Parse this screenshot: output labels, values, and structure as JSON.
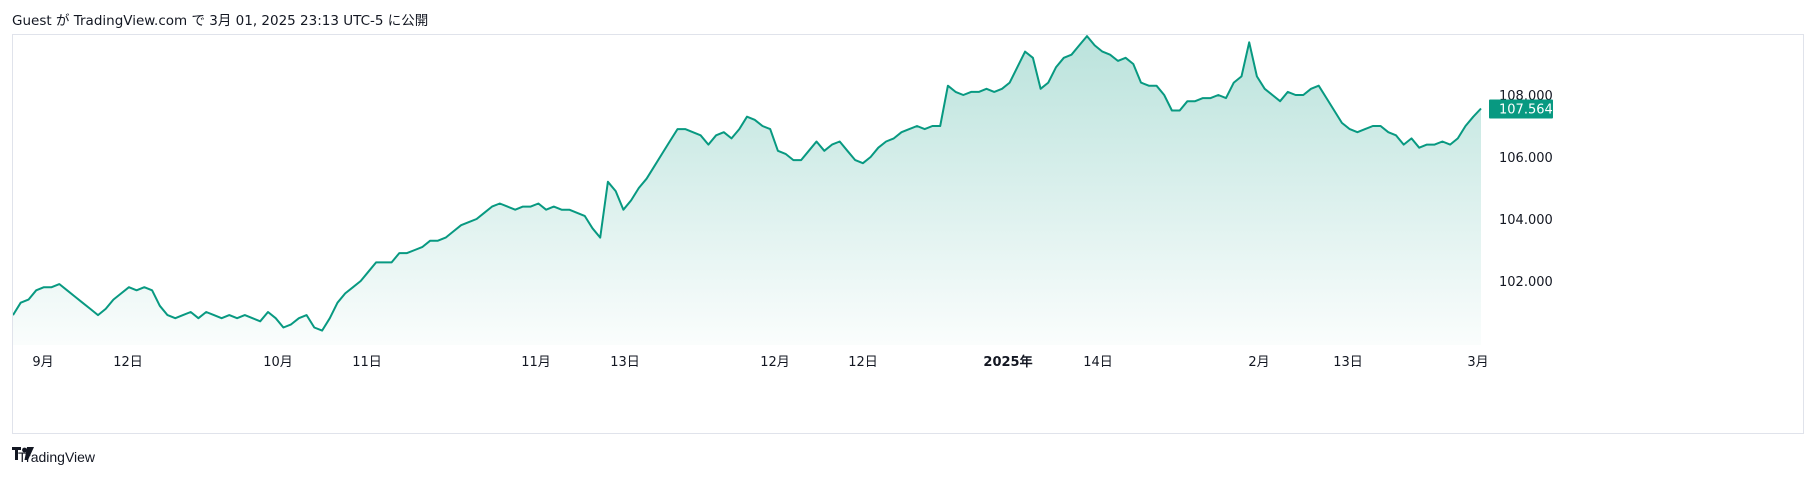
{
  "header": {
    "published": "Guest が TradingView.com で 3月 01, 2025 23:13 UTC-5 に公開"
  },
  "footer": {
    "brand": "TradingView",
    "logo_icon": "tradingview-logo-icon"
  },
  "colors": {
    "line": "#089981",
    "fill_top": "rgba(8,153,129,0.28)",
    "fill_bottom": "rgba(8,153,129,0.02)",
    "badge": "#089981"
  },
  "chart_data": {
    "type": "area",
    "title": "",
    "xlabel": "",
    "ylabel": "",
    "ylim": [
      100.0,
      110.0
    ],
    "y_ticks": [
      "108.000",
      "106.000",
      "104.000",
      "102.000"
    ],
    "y_tick_values": [
      108.0,
      106.0,
      104.0,
      102.0
    ],
    "last_value": 107.564,
    "last_value_label": "107.564",
    "x_ticks": [
      {
        "label": "9月",
        "bold": false
      },
      {
        "label": "12日",
        "bold": false
      },
      {
        "label": "10月",
        "bold": false
      },
      {
        "label": "11日",
        "bold": false
      },
      {
        "label": "11月",
        "bold": false
      },
      {
        "label": "13日",
        "bold": false
      },
      {
        "label": "12月",
        "bold": false
      },
      {
        "label": "12日",
        "bold": false
      },
      {
        "label": "2025年",
        "bold": true
      },
      {
        "label": "14日",
        "bold": false
      },
      {
        "label": "2月",
        "bold": false
      },
      {
        "label": "13日",
        "bold": false
      },
      {
        "label": "3月",
        "bold": false
      }
    ],
    "series": [
      {
        "values": [
          100.9,
          101.3,
          101.4,
          101.7,
          101.8,
          101.8,
          101.9,
          101.7,
          101.5,
          101.3,
          101.1,
          100.9,
          101.1,
          101.4,
          101.6,
          101.8,
          101.7,
          101.8,
          101.7,
          101.2,
          100.9,
          100.8,
          100.9,
          101.0,
          100.8,
          101.0,
          100.9,
          100.8,
          100.9,
          100.8,
          100.9,
          100.8,
          100.7,
          101.0,
          100.8,
          100.5,
          100.6,
          100.8,
          100.9,
          100.5,
          100.4,
          100.8,
          101.3,
          101.6,
          101.8,
          102.0,
          102.3,
          102.6,
          102.6,
          102.6,
          102.9,
          102.9,
          103.0,
          103.1,
          103.3,
          103.3,
          103.4,
          103.6,
          103.8,
          103.9,
          104.0,
          104.2,
          104.4,
          104.5,
          104.4,
          104.3,
          104.4,
          104.4,
          104.5,
          104.3,
          104.4,
          104.3,
          104.3,
          104.2,
          104.1,
          103.7,
          103.4,
          105.2,
          104.9,
          104.3,
          104.6,
          105.0,
          105.3,
          105.7,
          106.1,
          106.5,
          106.9,
          106.9,
          106.8,
          106.7,
          106.4,
          106.7,
          106.8,
          106.6,
          106.9,
          107.3,
          107.2,
          107.0,
          106.9,
          106.2,
          106.1,
          105.9,
          105.9,
          106.2,
          106.5,
          106.2,
          106.4,
          106.5,
          106.2,
          105.9,
          105.8,
          106.0,
          106.3,
          106.5,
          106.6,
          106.8,
          106.9,
          107.0,
          106.9,
          107.0,
          107.0,
          108.3,
          108.1,
          108.0,
          108.1,
          108.1,
          108.2,
          108.1,
          108.2,
          108.4,
          108.9,
          109.4,
          109.2,
          108.2,
          108.4,
          108.9,
          109.2,
          109.3,
          109.6,
          109.9,
          109.6,
          109.4,
          109.3,
          109.1,
          109.2,
          109.0,
          108.4,
          108.3,
          108.3,
          108.0,
          107.5,
          107.5,
          107.8,
          107.8,
          107.9,
          107.9,
          108.0,
          107.9,
          108.4,
          108.6,
          109.7,
          108.6,
          108.2,
          108.0,
          107.8,
          108.1,
          108.0,
          108.0,
          108.2,
          108.3,
          107.9,
          107.5,
          107.1,
          106.9,
          106.8,
          106.9,
          107.0,
          107.0,
          106.8,
          106.7,
          106.4,
          106.6,
          106.3,
          106.4,
          106.4,
          106.5,
          106.4,
          106.6,
          107.0,
          107.3,
          107.564
        ]
      }
    ]
  }
}
